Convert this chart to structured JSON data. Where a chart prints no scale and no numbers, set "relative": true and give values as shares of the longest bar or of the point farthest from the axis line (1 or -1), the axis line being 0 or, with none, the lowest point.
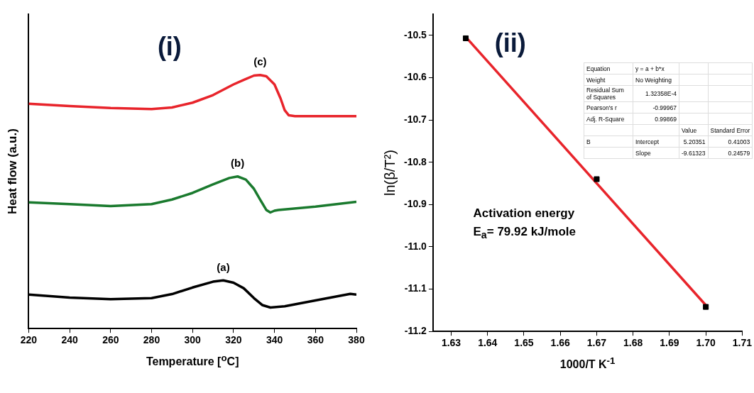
{
  "chart_data": [
    {
      "type": "line",
      "title": "(i)",
      "xlabel": "Temperature [$^{o}$C]",
      "ylabel": "Heat flow (a.u.)",
      "relative": true,
      "xlim": [
        220,
        380
      ],
      "xticks": [
        220,
        240,
        260,
        280,
        300,
        320,
        340,
        360,
        380
      ],
      "tick_labels": "x",
      "grid": false,
      "legend": false,
      "marker": "none",
      "series": [
        {
          "color": "#000000",
          "x": [
            220,
            240,
            260,
            280,
            290,
            300,
            310,
            315,
            320,
            325,
            330,
            334,
            338,
            345,
            360,
            377,
            380
          ],
          "values": [
            0.134,
            0.122,
            0.116,
            0.12,
            0.136,
            0.162,
            0.185,
            0.19,
            0.181,
            0.159,
            0.12,
            0.093,
            0.083,
            0.088,
            0.111,
            0.137,
            0.134
          ]
        },
        {
          "color": "#1a7a2e",
          "x": [
            220,
            240,
            260,
            280,
            290,
            300,
            310,
            318,
            322,
            326,
            330,
            333,
            336,
            338,
            340,
            342,
            360,
            380
          ],
          "values": [
            0.498,
            0.491,
            0.483,
            0.491,
            0.509,
            0.535,
            0.569,
            0.594,
            0.6,
            0.588,
            0.551,
            0.509,
            0.468,
            0.458,
            0.465,
            0.468,
            0.481,
            0.5
          ]
        },
        {
          "color": "#e8242b",
          "x": [
            220,
            240,
            260,
            280,
            290,
            300,
            310,
            320,
            325,
            330,
            333,
            336,
            340,
            343,
            345,
            347,
            350,
            380
          ],
          "values": [
            0.887,
            0.878,
            0.87,
            0.866,
            0.872,
            0.891,
            0.921,
            0.963,
            0.981,
            0.998,
            1,
            0.995,
            0.963,
            0.907,
            0.861,
            0.841,
            0.838,
            0.838
          ]
        }
      ],
      "annotations": [
        {
          "text": "(a)",
          "x": 315,
          "y": 0.19
        },
        {
          "text": "(b)",
          "x": 322,
          "y": 0.6
        },
        {
          "text": "(c)",
          "x": 333,
          "y": 1
        }
      ]
    },
    {
      "type": "scatter",
      "title": "(ii)",
      "xlabel": "1000/T K$^{-1}$",
      "ylabel": "ln(β/T²)",
      "xlim": [
        1.625,
        1.71
      ],
      "xticks": [
        1.63,
        1.64,
        1.65,
        1.66,
        1.67,
        1.68,
        1.69,
        {
          "value": 1.7,
          "label": "1.70"
        },
        1.71
      ],
      "ylim": [
        -11.2,
        -10.45
      ],
      "yticks": [
        -10.5,
        -10.6,
        -10.7,
        -10.8,
        -10.9,
        {
          "value": -11,
          "label": "-11.0"
        },
        -11.1,
        -11.2
      ],
      "grid": false,
      "legend": false,
      "marker": "square",
      "series": [
        {
          "color": "#000000",
          "x": [
            1.634,
            1.67,
            1.7
          ],
          "values": [
            -10.507,
            -10.84,
            -11.142
          ]
        },
        {
          "type": "line",
          "marker": "none",
          "color": "#e8242b",
          "x": [
            1.634,
            1.7
          ],
          "values": [
            -10.504,
            -11.138
          ]
        }
      ],
      "annotations": [
        "Activation energy",
        "E$_{a}$= 79.92 kJ/mole"
      ]
    },
    {
      "type": "other",
      "cell_labels": [
        [
          "Equation",
          "y = a + b*x",
          null,
          null
        ],
        [
          "Weight",
          "No Weighting",
          null,
          null
        ],
        [
          "Residual Sum of Squares",
          "1.32358E-4",
          null,
          null
        ],
        [
          "Pearson's r",
          "-0.99967",
          null,
          null
        ],
        [
          "Adj. R-Square",
          "0.99869",
          null,
          null
        ],
        [
          null,
          null,
          "Value",
          "Standard Error"
        ],
        [
          "B",
          "Intercept",
          "5.20351",
          "0.41003"
        ],
        [
          null,
          "Slope",
          "-9.61323",
          "0.24579"
        ]
      ]
    }
  ]
}
